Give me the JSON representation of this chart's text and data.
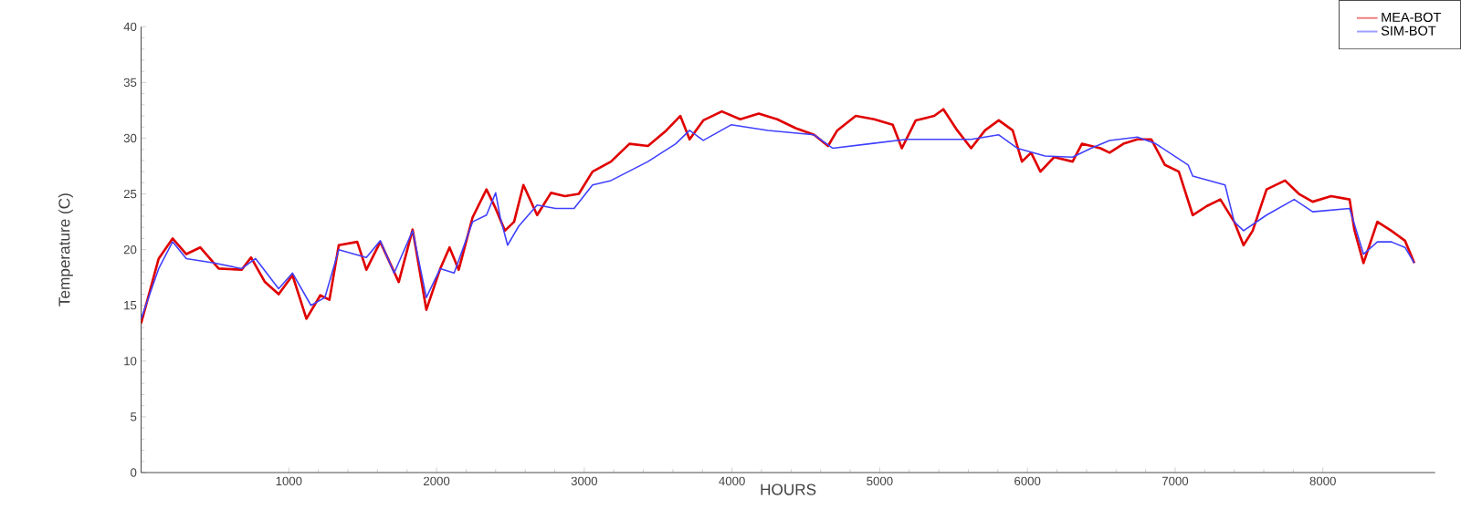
{
  "chart_data": {
    "type": "line",
    "xlabel": "HOURS",
    "ylabel": "Temperature (C)",
    "xlim": [
      0,
      8760
    ],
    "ylim": [
      0,
      40
    ],
    "xticks": [
      1000,
      2000,
      3000,
      4000,
      5000,
      6000,
      7000,
      8000
    ],
    "yticks": [
      0,
      5,
      10,
      15,
      20,
      25,
      30,
      35,
      40
    ],
    "grid": false,
    "legend": "top right",
    "line_style": "solid",
    "series": [
      {
        "name": "MEA-BOT",
        "color": "#e00000",
        "x": [
          0,
          119,
          213,
          306,
          400,
          525,
          681,
          744,
          838,
          931,
          1025,
          1119,
          1213,
          1275,
          1338,
          1463,
          1525,
          1619,
          1744,
          1838,
          1931,
          2025,
          2088,
          2150,
          2244,
          2338,
          2400,
          2463,
          2525,
          2588,
          2681,
          2775,
          2869,
          2963,
          3056,
          3181,
          3306,
          3431,
          3556,
          3650,
          3713,
          3806,
          3931,
          4056,
          4181,
          4306,
          4431,
          4556,
          4650,
          4713,
          4838,
          4963,
          5088,
          5150,
          5244,
          5369,
          5431,
          5525,
          5619,
          5713,
          5806,
          5900,
          5963,
          6025,
          6088,
          6181,
          6306,
          6369,
          6494,
          6556,
          6650,
          6744,
          6838,
          6931,
          7025,
          7119,
          7213,
          7306,
          7400,
          7463,
          7525,
          7619,
          7744,
          7838,
          7931,
          8056,
          8181,
          8213,
          8275,
          8369,
          8463,
          8556,
          8619
        ],
        "values": [
          13.4,
          19.2,
          21.0,
          19.6,
          20.2,
          18.3,
          18.2,
          19.3,
          17.1,
          16.0,
          17.7,
          13.8,
          15.9,
          15.5,
          20.4,
          20.7,
          18.2,
          20.7,
          17.1,
          21.8,
          14.6,
          18.3,
          20.2,
          18.2,
          22.9,
          25.4,
          23.7,
          21.7,
          22.5,
          25.8,
          23.1,
          25.1,
          24.8,
          25.0,
          27.0,
          27.9,
          29.5,
          29.3,
          30.7,
          32.0,
          29.9,
          31.6,
          32.4,
          31.7,
          32.2,
          31.7,
          30.9,
          30.3,
          29.3,
          30.7,
          32.0,
          31.7,
          31.2,
          29.1,
          31.6,
          32.0,
          32.6,
          30.7,
          29.1,
          30.7,
          31.6,
          30.7,
          27.9,
          28.7,
          27.0,
          28.3,
          27.9,
          29.5,
          29.1,
          28.7,
          29.5,
          29.9,
          29.9,
          27.6,
          27.0,
          23.1,
          23.9,
          24.5,
          22.5,
          20.4,
          21.7,
          25.4,
          26.2,
          25.0,
          24.3,
          24.8,
          24.5,
          21.8,
          18.8,
          22.5,
          21.7,
          20.8,
          18.8
        ]
      },
      {
        "name": "SIM-BOT",
        "color": "#4040ff",
        "x": [
          0,
          119,
          213,
          306,
          494,
          681,
          775,
          931,
          1025,
          1150,
          1244,
          1338,
          1525,
          1619,
          1713,
          1838,
          1931,
          2025,
          2119,
          2244,
          2338,
          2400,
          2431,
          2481,
          2556,
          2681,
          2806,
          2931,
          3056,
          3181,
          3431,
          3619,
          3713,
          3806,
          3994,
          4244,
          4556,
          4681,
          4931,
          5181,
          5369,
          5525,
          5619,
          5806,
          5931,
          6119,
          6306,
          6431,
          6556,
          6744,
          6869,
          7088,
          7119,
          7338,
          7400,
          7463,
          7619,
          7806,
          7931,
          8181,
          8275,
          8369,
          8463,
          8556,
          8619
        ],
        "values": [
          13.8,
          18.3,
          20.7,
          19.2,
          18.8,
          18.3,
          19.2,
          16.5,
          17.9,
          15.0,
          15.7,
          20.0,
          19.3,
          20.8,
          17.9,
          21.7,
          15.7,
          18.3,
          17.9,
          22.5,
          23.1,
          25.1,
          22.9,
          20.4,
          22.1,
          24.0,
          23.7,
          23.7,
          25.8,
          26.2,
          27.9,
          29.5,
          30.7,
          29.8,
          31.2,
          30.7,
          30.3,
          29.1,
          29.5,
          29.9,
          29.9,
          29.9,
          29.9,
          30.3,
          29.1,
          28.4,
          28.3,
          29.1,
          29.8,
          30.1,
          29.5,
          27.6,
          26.6,
          25.8,
          22.5,
          21.7,
          23.1,
          24.5,
          23.4,
          23.7,
          19.6,
          20.7,
          20.7,
          20.2,
          18.8
        ]
      }
    ]
  }
}
